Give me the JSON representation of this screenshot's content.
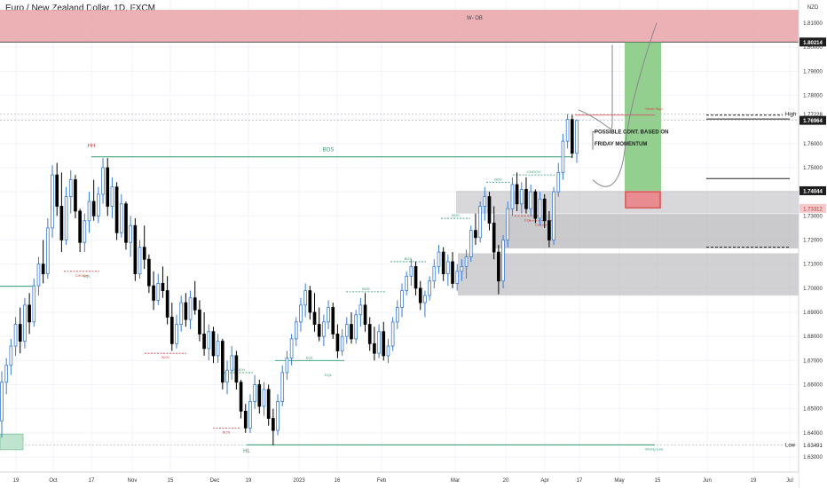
{
  "header": {
    "title": "Euro / New Zealand Dollar, 1D, FXCM"
  },
  "chart_data": {
    "type": "candlestick",
    "symbol": "Euro / New Zealand Dollar",
    "timeframe": "1D",
    "source": "FXCM",
    "currency": "NZD",
    "ylim": [
      1.628,
      1.822
    ],
    "y_ticks": [
      "1.81000",
      "1.80000",
      "1.79000",
      "1.78000",
      "1.77000",
      "1.76000",
      "1.75000",
      "1.74000",
      "1.73000",
      "1.72000",
      "1.71000",
      "1.70000",
      "1.69000",
      "1.68000",
      "1.67000",
      "1.66000",
      "1.65000",
      "1.64000",
      "1.63000"
    ],
    "x_ticks": [
      "19",
      "Oct",
      "17",
      "Nov",
      "15",
      "Dec",
      "19",
      "2023",
      "16",
      "Feb",
      "Mar",
      "20",
      "Apr",
      "17",
      "May",
      "15",
      "Jun",
      "19",
      "Jul"
    ],
    "price_labels": [
      {
        "text": "1.80214",
        "value": 1.80214,
        "style": "dark"
      },
      {
        "text": "1.77228",
        "value": 1.77228,
        "style": "plain"
      },
      {
        "text": "1.76964",
        "value": 1.76964,
        "style": "dark"
      },
      {
        "text": "1.74044",
        "value": 1.74044,
        "style": "dark"
      },
      {
        "text": "1.73312",
        "value": 1.73312,
        "style": "red"
      },
      {
        "text": "1.63491",
        "value": 1.63491,
        "style": "plain"
      }
    ],
    "level_labels": {
      "high": "High",
      "low": "Low"
    },
    "annotations": {
      "order_block": "W- OB",
      "bos": "BOS",
      "hh": "HH",
      "hl": "HL",
      "choch": "CHOCH",
      "eql": "EQL",
      "possible_cont_line1": "POSSIBLE CONT. BASED ON",
      "possible_cont_line2": "FRIDAY MOMENTUM",
      "strong_low": "Strong Low",
      "weak_high": "Weak High"
    },
    "colors": {
      "bull_body": "#ffffff",
      "bull_outline": "#3a7bd5",
      "bear_body": "#000000",
      "order_block": "#e8a3a8",
      "zone_gray": "#b8b8bc",
      "target_green": "#8dce8a",
      "stop_red": "#e9888e",
      "bos_green": "#2e9a6e",
      "choch_red": "#d24545"
    },
    "candles": [
      {
        "o": 1.645,
        "h": 1.6655,
        "l": 1.638,
        "c": 1.661
      },
      {
        "o": 1.661,
        "h": 1.671,
        "l": 1.656,
        "c": 1.668
      },
      {
        "o": 1.668,
        "h": 1.679,
        "l": 1.664,
        "c": 1.676
      },
      {
        "o": 1.676,
        "h": 1.688,
        "l": 1.672,
        "c": 1.685
      },
      {
        "o": 1.685,
        "h": 1.692,
        "l": 1.673,
        "c": 1.678
      },
      {
        "o": 1.678,
        "h": 1.696,
        "l": 1.675,
        "c": 1.693
      },
      {
        "o": 1.693,
        "h": 1.698,
        "l": 1.681,
        "c": 1.686
      },
      {
        "o": 1.686,
        "h": 1.704,
        "l": 1.684,
        "c": 1.701
      },
      {
        "o": 1.701,
        "h": 1.713,
        "l": 1.697,
        "c": 1.71
      },
      {
        "o": 1.71,
        "h": 1.72,
        "l": 1.702,
        "c": 1.706
      },
      {
        "o": 1.706,
        "h": 1.729,
        "l": 1.704,
        "c": 1.725
      },
      {
        "o": 1.725,
        "h": 1.751,
        "l": 1.721,
        "c": 1.747
      },
      {
        "o": 1.747,
        "h": 1.752,
        "l": 1.73,
        "c": 1.734
      },
      {
        "o": 1.734,
        "h": 1.748,
        "l": 1.715,
        "c": 1.72
      },
      {
        "o": 1.72,
        "h": 1.742,
        "l": 1.718,
        "c": 1.738
      },
      {
        "o": 1.738,
        "h": 1.749,
        "l": 1.731,
        "c": 1.745
      },
      {
        "o": 1.745,
        "h": 1.747,
        "l": 1.729,
        "c": 1.732
      },
      {
        "o": 1.732,
        "h": 1.733,
        "l": 1.715,
        "c": 1.719
      },
      {
        "o": 1.719,
        "h": 1.731,
        "l": 1.715,
        "c": 1.728
      },
      {
        "o": 1.728,
        "h": 1.74,
        "l": 1.723,
        "c": 1.736
      },
      {
        "o": 1.736,
        "h": 1.745,
        "l": 1.728,
        "c": 1.73
      },
      {
        "o": 1.73,
        "h": 1.742,
        "l": 1.727,
        "c": 1.739
      },
      {
        "o": 1.739,
        "h": 1.754,
        "l": 1.735,
        "c": 1.75
      },
      {
        "o": 1.75,
        "h": 1.754,
        "l": 1.73,
        "c": 1.734
      },
      {
        "o": 1.734,
        "h": 1.746,
        "l": 1.729,
        "c": 1.742
      },
      {
        "o": 1.742,
        "h": 1.744,
        "l": 1.72,
        "c": 1.723
      },
      {
        "o": 1.723,
        "h": 1.739,
        "l": 1.721,
        "c": 1.735
      },
      {
        "o": 1.735,
        "h": 1.736,
        "l": 1.716,
        "c": 1.719
      },
      {
        "o": 1.719,
        "h": 1.73,
        "l": 1.713,
        "c": 1.726
      },
      {
        "o": 1.726,
        "h": 1.729,
        "l": 1.703,
        "c": 1.706
      },
      {
        "o": 1.706,
        "h": 1.72,
        "l": 1.704,
        "c": 1.717
      },
      {
        "o": 1.717,
        "h": 1.726,
        "l": 1.708,
        "c": 1.712
      },
      {
        "o": 1.712,
        "h": 1.714,
        "l": 1.698,
        "c": 1.701
      },
      {
        "o": 1.701,
        "h": 1.707,
        "l": 1.691,
        "c": 1.695
      },
      {
        "o": 1.695,
        "h": 1.706,
        "l": 1.693,
        "c": 1.702
      },
      {
        "o": 1.702,
        "h": 1.709,
        "l": 1.696,
        "c": 1.699
      },
      {
        "o": 1.699,
        "h": 1.705,
        "l": 1.685,
        "c": 1.688
      },
      {
        "o": 1.688,
        "h": 1.694,
        "l": 1.674,
        "c": 1.677
      },
      {
        "o": 1.677,
        "h": 1.689,
        "l": 1.675,
        "c": 1.685
      },
      {
        "o": 1.685,
        "h": 1.697,
        "l": 1.682,
        "c": 1.694
      },
      {
        "o": 1.694,
        "h": 1.698,
        "l": 1.684,
        "c": 1.687
      },
      {
        "o": 1.687,
        "h": 1.699,
        "l": 1.683,
        "c": 1.696
      },
      {
        "o": 1.696,
        "h": 1.703,
        "l": 1.689,
        "c": 1.691
      },
      {
        "o": 1.691,
        "h": 1.695,
        "l": 1.678,
        "c": 1.681
      },
      {
        "o": 1.681,
        "h": 1.69,
        "l": 1.672,
        "c": 1.675
      },
      {
        "o": 1.675,
        "h": 1.685,
        "l": 1.67,
        "c": 1.682
      },
      {
        "o": 1.682,
        "h": 1.684,
        "l": 1.669,
        "c": 1.672
      },
      {
        "o": 1.672,
        "h": 1.681,
        "l": 1.669,
        "c": 1.678
      },
      {
        "o": 1.678,
        "h": 1.679,
        "l": 1.658,
        "c": 1.661
      },
      {
        "o": 1.661,
        "h": 1.67,
        "l": 1.656,
        "c": 1.666
      },
      {
        "o": 1.666,
        "h": 1.676,
        "l": 1.662,
        "c": 1.672
      },
      {
        "o": 1.672,
        "h": 1.674,
        "l": 1.658,
        "c": 1.661
      },
      {
        "o": 1.661,
        "h": 1.662,
        "l": 1.646,
        "c": 1.649
      },
      {
        "o": 1.649,
        "h": 1.652,
        "l": 1.64,
        "c": 1.642
      },
      {
        "o": 1.642,
        "h": 1.656,
        "l": 1.64,
        "c": 1.653
      },
      {
        "o": 1.653,
        "h": 1.664,
        "l": 1.65,
        "c": 1.66
      },
      {
        "o": 1.66,
        "h": 1.662,
        "l": 1.648,
        "c": 1.651
      },
      {
        "o": 1.651,
        "h": 1.661,
        "l": 1.647,
        "c": 1.658
      },
      {
        "o": 1.658,
        "h": 1.66,
        "l": 1.643,
        "c": 1.646
      },
      {
        "o": 1.646,
        "h": 1.65,
        "l": 1.6349,
        "c": 1.641
      },
      {
        "o": 1.641,
        "h": 1.656,
        "l": 1.639,
        "c": 1.653
      },
      {
        "o": 1.653,
        "h": 1.668,
        "l": 1.651,
        "c": 1.665
      },
      {
        "o": 1.665,
        "h": 1.674,
        "l": 1.662,
        "c": 1.671
      },
      {
        "o": 1.671,
        "h": 1.681,
        "l": 1.668,
        "c": 1.679
      },
      {
        "o": 1.679,
        "h": 1.688,
        "l": 1.676,
        "c": 1.686
      },
      {
        "o": 1.686,
        "h": 1.696,
        "l": 1.682,
        "c": 1.693
      },
      {
        "o": 1.693,
        "h": 1.702,
        "l": 1.688,
        "c": 1.699
      },
      {
        "o": 1.699,
        "h": 1.701,
        "l": 1.687,
        "c": 1.69
      },
      {
        "o": 1.69,
        "h": 1.698,
        "l": 1.682,
        "c": 1.685
      },
      {
        "o": 1.685,
        "h": 1.692,
        "l": 1.678,
        "c": 1.68
      },
      {
        "o": 1.68,
        "h": 1.689,
        "l": 1.676,
        "c": 1.686
      },
      {
        "o": 1.686,
        "h": 1.695,
        "l": 1.683,
        "c": 1.692
      },
      {
        "o": 1.692,
        "h": 1.694,
        "l": 1.679,
        "c": 1.681
      },
      {
        "o": 1.681,
        "h": 1.685,
        "l": 1.671,
        "c": 1.674
      },
      {
        "o": 1.674,
        "h": 1.683,
        "l": 1.672,
        "c": 1.68
      },
      {
        "o": 1.68,
        "h": 1.688,
        "l": 1.677,
        "c": 1.685
      },
      {
        "o": 1.685,
        "h": 1.69,
        "l": 1.677,
        "c": 1.679
      },
      {
        "o": 1.679,
        "h": 1.691,
        "l": 1.677,
        "c": 1.689
      },
      {
        "o": 1.689,
        "h": 1.696,
        "l": 1.684,
        "c": 1.693
      },
      {
        "o": 1.693,
        "h": 1.698,
        "l": 1.682,
        "c": 1.685
      },
      {
        "o": 1.685,
        "h": 1.688,
        "l": 1.674,
        "c": 1.677
      },
      {
        "o": 1.677,
        "h": 1.684,
        "l": 1.67,
        "c": 1.673
      },
      {
        "o": 1.673,
        "h": 1.685,
        "l": 1.671,
        "c": 1.682
      },
      {
        "o": 1.682,
        "h": 1.686,
        "l": 1.67,
        "c": 1.672
      },
      {
        "o": 1.672,
        "h": 1.679,
        "l": 1.669,
        "c": 1.676
      },
      {
        "o": 1.676,
        "h": 1.688,
        "l": 1.674,
        "c": 1.686
      },
      {
        "o": 1.686,
        "h": 1.695,
        "l": 1.683,
        "c": 1.692
      },
      {
        "o": 1.692,
        "h": 1.702,
        "l": 1.688,
        "c": 1.699
      },
      {
        "o": 1.699,
        "h": 1.707,
        "l": 1.697,
        "c": 1.705
      },
      {
        "o": 1.705,
        "h": 1.712,
        "l": 1.701,
        "c": 1.709
      },
      {
        "o": 1.709,
        "h": 1.711,
        "l": 1.697,
        "c": 1.7
      },
      {
        "o": 1.7,
        "h": 1.703,
        "l": 1.691,
        "c": 1.694
      },
      {
        "o": 1.694,
        "h": 1.699,
        "l": 1.688,
        "c": 1.697
      },
      {
        "o": 1.697,
        "h": 1.705,
        "l": 1.695,
        "c": 1.703
      },
      {
        "o": 1.703,
        "h": 1.712,
        "l": 1.7,
        "c": 1.709
      },
      {
        "o": 1.709,
        "h": 1.718,
        "l": 1.706,
        "c": 1.715
      },
      {
        "o": 1.715,
        "h": 1.717,
        "l": 1.703,
        "c": 1.706
      },
      {
        "o": 1.706,
        "h": 1.714,
        "l": 1.701,
        "c": 1.711
      },
      {
        "o": 1.711,
        "h": 1.715,
        "l": 1.7,
        "c": 1.702
      },
      {
        "o": 1.702,
        "h": 1.71,
        "l": 1.699,
        "c": 1.707
      },
      {
        "o": 1.707,
        "h": 1.712,
        "l": 1.703,
        "c": 1.709
      },
      {
        "o": 1.709,
        "h": 1.716,
        "l": 1.704,
        "c": 1.713
      },
      {
        "o": 1.713,
        "h": 1.726,
        "l": 1.711,
        "c": 1.724
      },
      {
        "o": 1.724,
        "h": 1.731,
        "l": 1.718,
        "c": 1.721
      },
      {
        "o": 1.721,
        "h": 1.736,
        "l": 1.719,
        "c": 1.734
      },
      {
        "o": 1.734,
        "h": 1.742,
        "l": 1.728,
        "c": 1.738
      },
      {
        "o": 1.738,
        "h": 1.74,
        "l": 1.724,
        "c": 1.727
      },
      {
        "o": 1.727,
        "h": 1.734,
        "l": 1.712,
        "c": 1.715
      },
      {
        "o": 1.715,
        "h": 1.718,
        "l": 1.6975,
        "c": 1.703
      },
      {
        "o": 1.703,
        "h": 1.722,
        "l": 1.7,
        "c": 1.72
      },
      {
        "o": 1.72,
        "h": 1.736,
        "l": 1.717,
        "c": 1.733
      },
      {
        "o": 1.733,
        "h": 1.746,
        "l": 1.73,
        "c": 1.743
      },
      {
        "o": 1.743,
        "h": 1.748,
        "l": 1.732,
        "c": 1.735
      },
      {
        "o": 1.735,
        "h": 1.744,
        "l": 1.731,
        "c": 1.741
      },
      {
        "o": 1.741,
        "h": 1.746,
        "l": 1.731,
        "c": 1.733
      },
      {
        "o": 1.733,
        "h": 1.743,
        "l": 1.73,
        "c": 1.74
      },
      {
        "o": 1.74,
        "h": 1.741,
        "l": 1.727,
        "c": 1.729
      },
      {
        "o": 1.729,
        "h": 1.74,
        "l": 1.726,
        "c": 1.737
      },
      {
        "o": 1.737,
        "h": 1.739,
        "l": 1.725,
        "c": 1.728
      },
      {
        "o": 1.728,
        "h": 1.732,
        "l": 1.717,
        "c": 1.72
      },
      {
        "o": 1.72,
        "h": 1.742,
        "l": 1.718,
        "c": 1.74
      },
      {
        "o": 1.74,
        "h": 1.752,
        "l": 1.738,
        "c": 1.748
      },
      {
        "o": 1.748,
        "h": 1.764,
        "l": 1.745,
        "c": 1.761
      },
      {
        "o": 1.761,
        "h": 1.7723,
        "l": 1.758,
        "c": 1.77
      },
      {
        "o": 1.77,
        "h": 1.772,
        "l": 1.754,
        "c": 1.756
      },
      {
        "o": 1.756,
        "h": 1.77,
        "l": 1.752,
        "c": 1.7696
      }
    ]
  }
}
